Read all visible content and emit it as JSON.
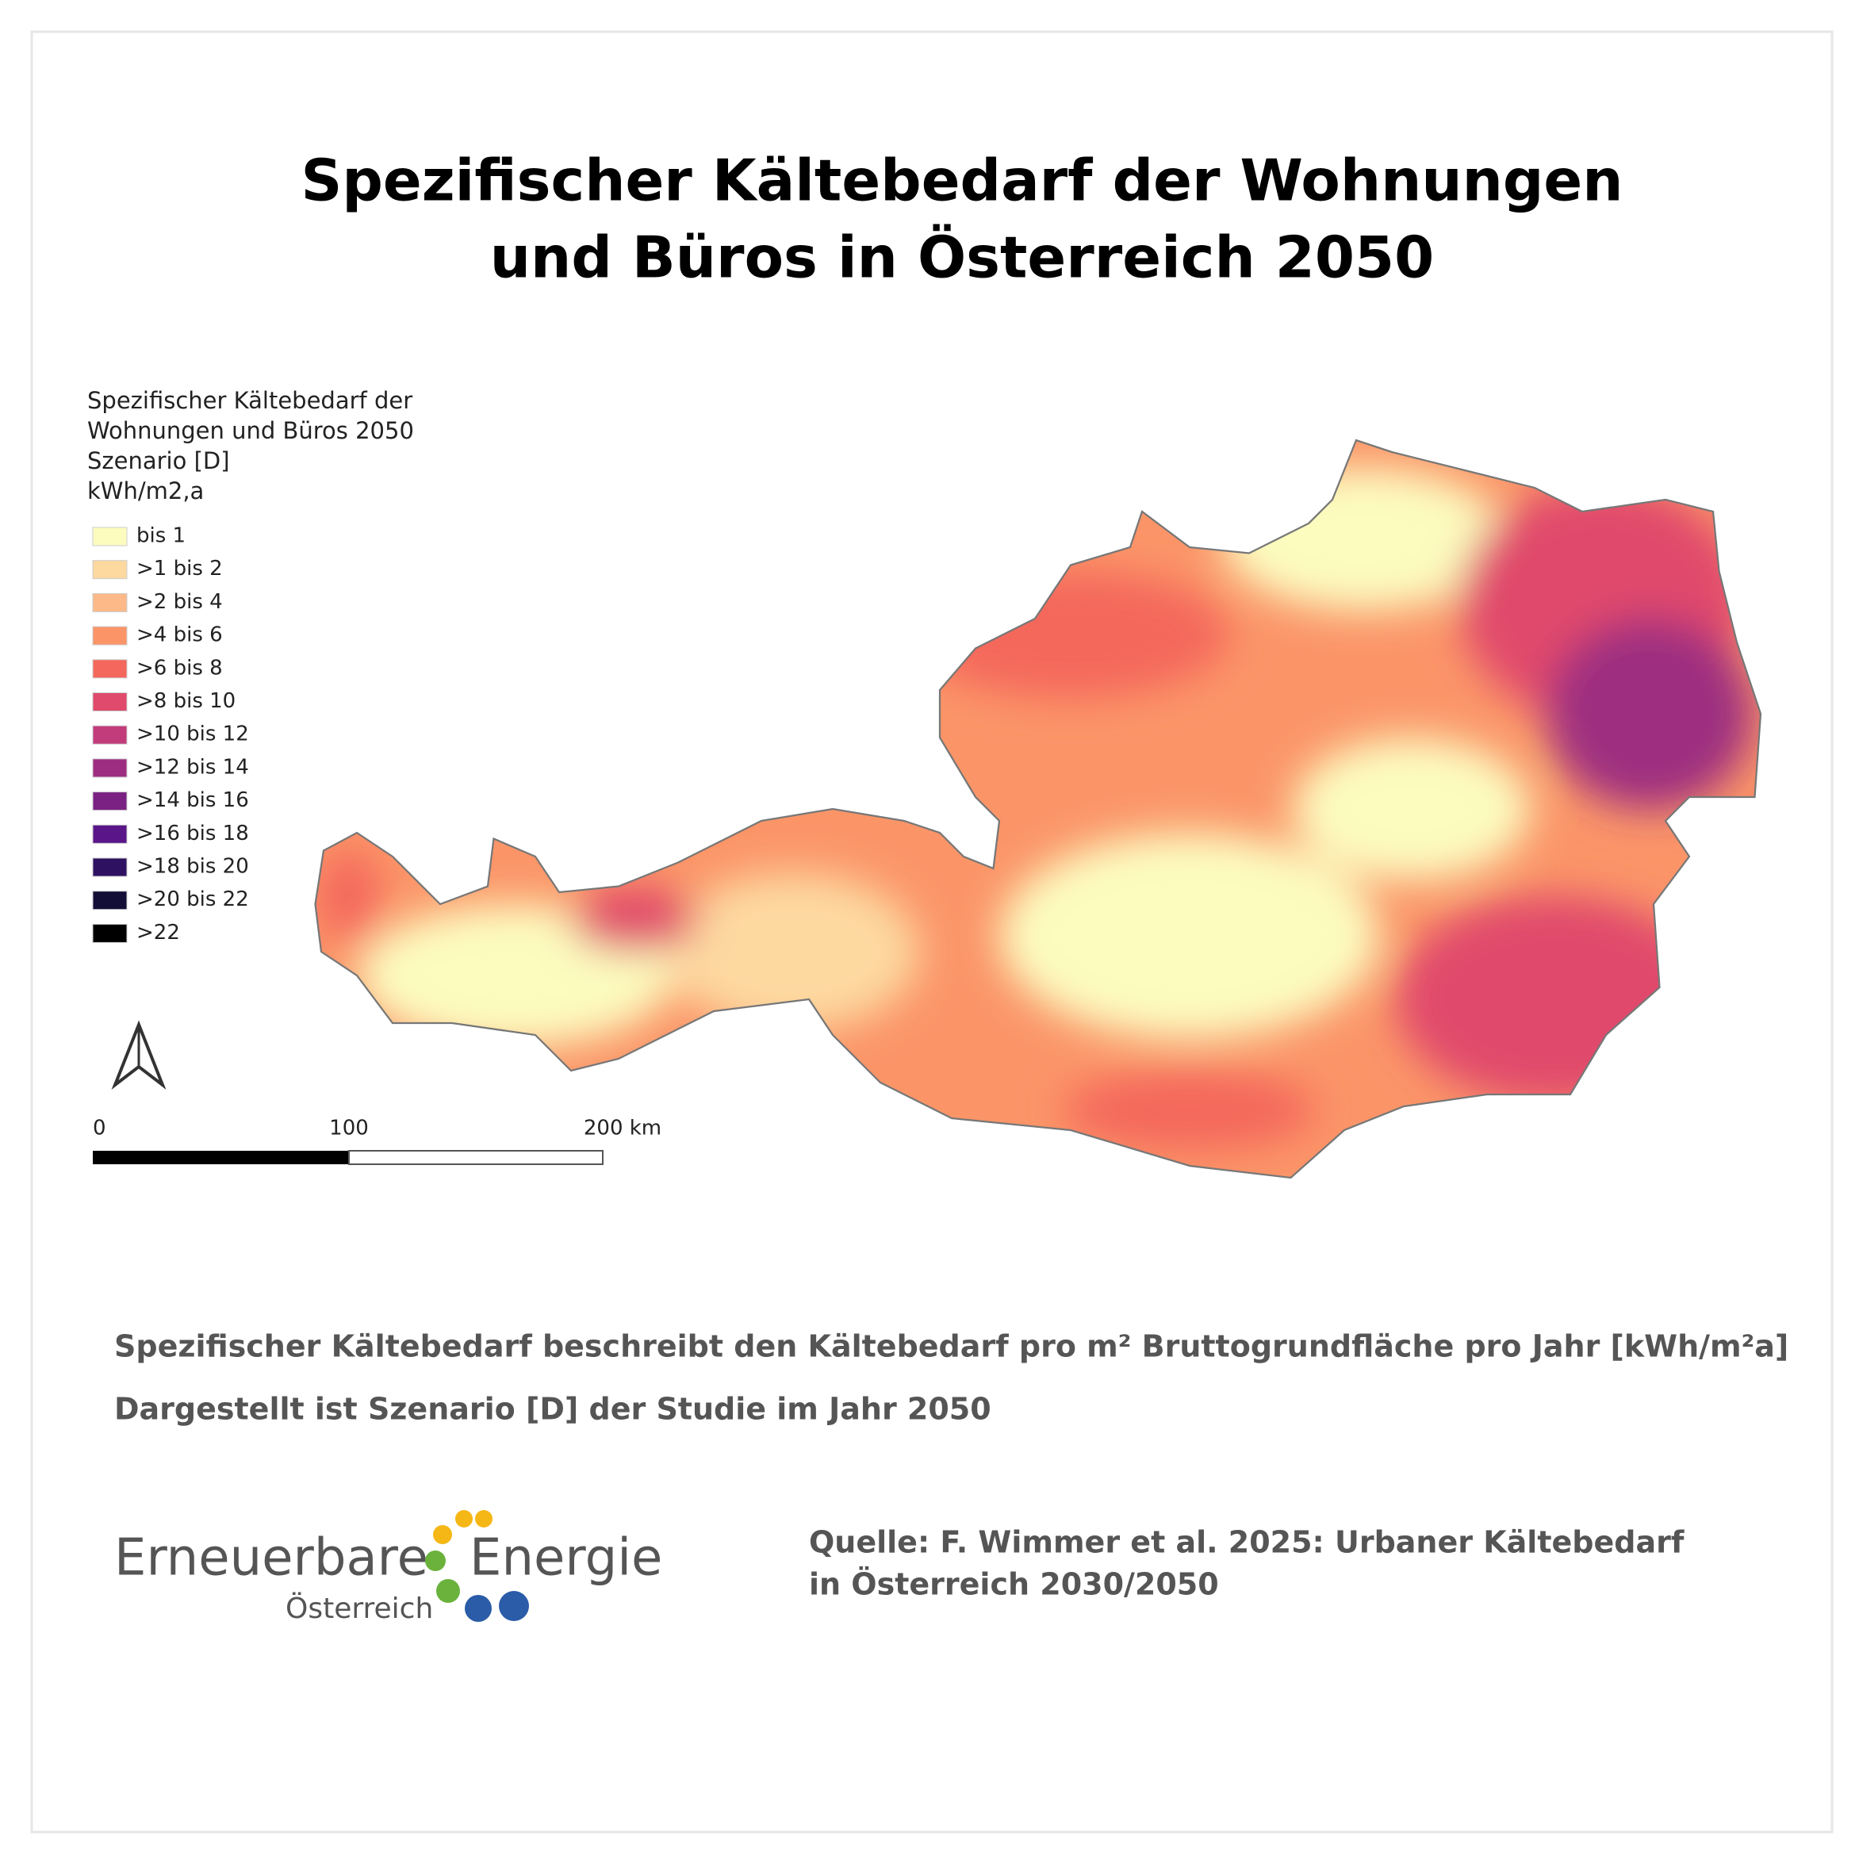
{
  "header": {
    "title_lines": [
      "Spezifischer Kältebedarf der Wohnungen",
      "und Büros in Österreich 2050"
    ]
  },
  "legend": {
    "title_lines": [
      "Spezifischer Kältebedarf der",
      "Wohnungen und Büros 2050",
      "Szenario [D]",
      "kWh/m2,a"
    ],
    "items": [
      {
        "label": "bis 1",
        "color": "#fcfcbf"
      },
      {
        "label": ">1 bis 2",
        "color": "#fdd9a0"
      },
      {
        "label": ">2 bis 4",
        "color": "#fdb988"
      },
      {
        "label": ">4 bis 6",
        "color": "#fb9568"
      },
      {
        "label": ">6 bis 8",
        "color": "#f4675c"
      },
      {
        "label": ">8 bis 10",
        "color": "#e04a6c"
      },
      {
        "label": ">10 bis 12",
        "color": "#c23b7b"
      },
      {
        "label": ">12 bis 14",
        "color": "#9d2d80"
      },
      {
        "label": ">14 bis 16",
        "color": "#7a2183"
      },
      {
        "label": ">16 bis 18",
        "color": "#5a1588"
      },
      {
        "label": ">18 bis 20",
        "color": "#2f1162"
      },
      {
        "label": ">20 bis 22",
        "color": "#130e36"
      },
      {
        "label": ">22",
        "color": "#000000"
      }
    ]
  },
  "scale_bar": {
    "labels": [
      "0",
      "100",
      "200 km"
    ]
  },
  "notes": [
    "Spezifischer Kältebedarf beschreibt den Kältebedarf pro m² Bruttogrundfläche pro Jahr [kWh/m²a]",
    "Dargestellt ist Szenario [D] der Studie im Jahr 2050"
  ],
  "logo": {
    "word1": "Erneuerbare",
    "word2": "Energie",
    "sub": "Österreich"
  },
  "source": {
    "lines": [
      "Quelle: F. Wimmer et al. 2025: Urbaner Kältebedarf",
      "in Österreich 2030/2050"
    ]
  }
}
